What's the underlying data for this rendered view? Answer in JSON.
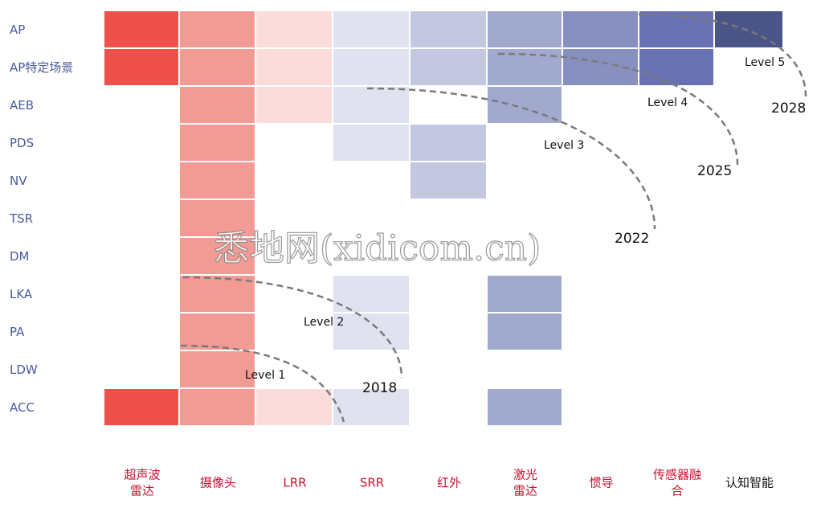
{
  "rows": [
    "AP",
    "AP特定场景",
    "AEB",
    "PDS",
    "NV",
    "TSR",
    "DM",
    "LKA",
    "PA",
    "LDW",
    "ACC"
  ],
  "columns": [
    [
      "超声波",
      "雷达"
    ],
    [
      "摄像头"
    ],
    [
      "LRR"
    ],
    [
      "SRR"
    ],
    [
      "红外"
    ],
    [
      "激光",
      "雷达"
    ],
    [
      "惯导"
    ],
    [
      "传感器融",
      "合"
    ],
    [
      "认知智能"
    ]
  ],
  "levels": [
    "Level 1",
    "Level 2",
    "Level 3",
    "Level 4",
    "Level 5"
  ],
  "years": [
    "2018",
    "2022",
    "2025",
    "2028"
  ],
  "watermark": "悉地网(xidicom.cn)"
}
